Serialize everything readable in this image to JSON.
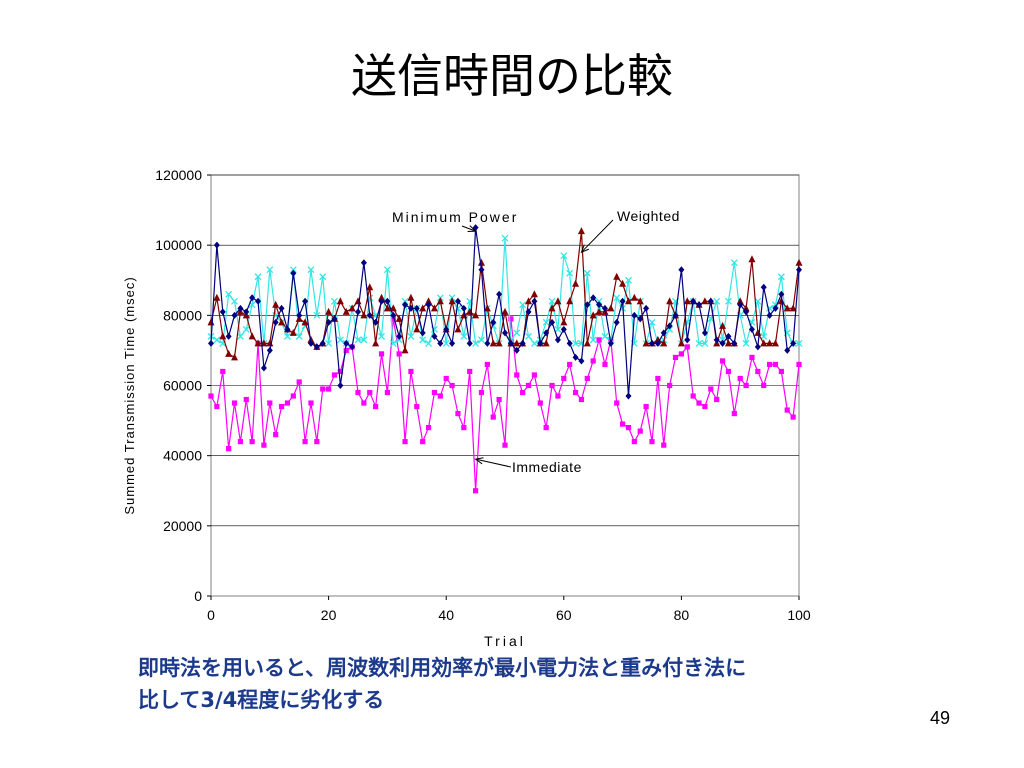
{
  "slide": {
    "title": "送信時間の比較",
    "caption_line1": "即時法を用いると、周波数利用効率が最小電力法と重み付き法に",
    "caption_line2": "比して3/4程度に劣化する",
    "page_number": "49"
  },
  "colors": {
    "minimum_power": "#000080",
    "weighted": "#800000",
    "immediate": "#ff00ff",
    "cyan_series": "#33e6e6"
  },
  "chart_data": {
    "type": "line",
    "xlabel": "Trial",
    "ylabel": "Summed Transmission Time (msec)",
    "xlim": [
      0,
      100
    ],
    "ylim": [
      0,
      120000
    ],
    "x_ticks": [
      "0",
      "20",
      "40",
      "60",
      "80",
      "100"
    ],
    "y_ticks": [
      "0",
      "20000",
      "40000",
      "60000",
      "80000",
      "100000",
      "120000"
    ],
    "grid": true,
    "x": [
      0,
      1,
      2,
      3,
      4,
      5,
      6,
      7,
      8,
      9,
      10,
      11,
      12,
      13,
      14,
      15,
      16,
      17,
      18,
      19,
      20,
      21,
      22,
      23,
      24,
      25,
      26,
      27,
      28,
      29,
      30,
      31,
      32,
      33,
      34,
      35,
      36,
      37,
      38,
      39,
      40,
      41,
      42,
      43,
      44,
      45,
      46,
      47,
      48,
      49,
      50,
      51,
      52,
      53,
      54,
      55,
      56,
      57,
      58,
      59,
      60,
      61,
      62,
      63,
      64,
      65,
      66,
      67,
      68,
      69,
      70,
      71,
      72,
      73,
      74,
      75,
      76,
      77,
      78,
      79,
      80,
      81,
      82,
      83,
      84,
      85,
      86,
      87,
      88,
      89,
      90,
      91,
      92,
      93,
      94,
      95,
      96,
      97,
      98,
      99,
      100
    ],
    "series": [
      {
        "key": "minimum_power",
        "marker": "diamond",
        "values": [
          72000,
          100000,
          81000,
          74000,
          80000,
          82000,
          81000,
          85000,
          84000,
          65000,
          70000,
          78000,
          82000,
          76000,
          92000,
          80000,
          84000,
          72000,
          71000,
          72000,
          78000,
          79000,
          60000,
          72000,
          71000,
          81000,
          95000,
          80000,
          78000,
          84000,
          84000,
          80000,
          74000,
          83000,
          82000,
          82000,
          75000,
          83000,
          74000,
          72000,
          76000,
          72000,
          84000,
          82000,
          72000,
          105000,
          93000,
          72000,
          78000,
          86000,
          75000,
          72000,
          70000,
          72000,
          81000,
          84000,
          72000,
          75000,
          78000,
          73000,
          76000,
          72000,
          68000,
          67000,
          83000,
          85000,
          83000,
          82000,
          72000,
          78000,
          84000,
          57000,
          80000,
          79000,
          82000,
          72000,
          72000,
          75000,
          77000,
          80000,
          93000,
          73000,
          84000,
          83000,
          75000,
          84000,
          73000,
          72000,
          74000,
          72000,
          83000,
          81000,
          76000,
          71000,
          88000,
          80000,
          82000,
          86000,
          70000,
          72000,
          93000
        ]
      },
      {
        "key": "weighted",
        "marker": "triangle",
        "values": [
          78000,
          85000,
          74000,
          69000,
          68000,
          81000,
          80000,
          74000,
          72000,
          72000,
          72000,
          83000,
          78000,
          76000,
          75000,
          79000,
          78000,
          73000,
          71000,
          72000,
          81000,
          79000,
          84000,
          81000,
          82000,
          84000,
          80000,
          88000,
          72000,
          85000,
          82000,
          82000,
          79000,
          70000,
          85000,
          76000,
          82000,
          84000,
          82000,
          84000,
          76000,
          84000,
          76000,
          80000,
          81000,
          80000,
          95000,
          82000,
          72000,
          72000,
          81000,
          72000,
          72000,
          72000,
          84000,
          86000,
          72000,
          72000,
          82000,
          84000,
          78000,
          84000,
          89000,
          104000,
          72000,
          80000,
          81000,
          81000,
          82000,
          91000,
          89000,
          84000,
          85000,
          84000,
          72000,
          72000,
          73000,
          72000,
          84000,
          80000,
          72000,
          84000,
          84000,
          83000,
          84000,
          84000,
          72000,
          77000,
          72000,
          72000,
          84000,
          82000,
          96000,
          75000,
          72000,
          72000,
          72000,
          84000,
          82000,
          82000,
          95000
        ]
      },
      {
        "key": "immediate",
        "marker": "square",
        "values": [
          57000,
          54000,
          64000,
          42000,
          55000,
          44000,
          56000,
          44000,
          72000,
          43000,
          55000,
          46000,
          54000,
          55000,
          57000,
          61000,
          44000,
          55000,
          44000,
          59000,
          59000,
          63000,
          64000,
          70000,
          71000,
          58000,
          55000,
          58000,
          54000,
          69000,
          58000,
          79000,
          69000,
          44000,
          64000,
          54000,
          44000,
          48000,
          58000,
          57000,
          62000,
          60000,
          52000,
          48000,
          64000,
          30000,
          58000,
          66000,
          51000,
          56000,
          43000,
          79000,
          63000,
          58000,
          60000,
          63000,
          55000,
          48000,
          60000,
          57000,
          62000,
          66000,
          58000,
          56000,
          62000,
          67000,
          73000,
          66000,
          73000,
          55000,
          49000,
          48000,
          44000,
          47000,
          54000,
          44000,
          62000,
          43000,
          60000,
          68000,
          69000,
          71000,
          57000,
          55000,
          54000,
          59000,
          56000,
          67000,
          64000,
          52000,
          62000,
          60000,
          68000,
          64000,
          60000,
          66000,
          66000,
          64000,
          53000,
          51000,
          66000
        ]
      },
      {
        "key": "cyan_series",
        "marker": "x",
        "values": [
          74000,
          73000,
          72000,
          86000,
          84000,
          74000,
          76000,
          83000,
          91000,
          72000,
          93000,
          80000,
          78000,
          74000,
          93000,
          74000,
          77000,
          93000,
          80000,
          91000,
          72000,
          84000,
          73000,
          72000,
          82000,
          73000,
          73000,
          85000,
          80000,
          74000,
          93000,
          72000,
          73000,
          84000,
          74000,
          82000,
          73000,
          72000,
          76000,
          85000,
          72000,
          85000,
          82000,
          74000,
          84000,
          72000,
          73000,
          82000,
          77000,
          72000,
          102000,
          73000,
          75000,
          83000,
          74000,
          72000,
          73000,
          78000,
          84000,
          76000,
          97000,
          92000,
          72000,
          72000,
          92000,
          73000,
          84000,
          74000,
          73000,
          85000,
          82000,
          90000,
          72000,
          84000,
          72000,
          78000,
          72000,
          73000,
          76000,
          84000,
          72000,
          78000,
          84000,
          72000,
          72000,
          79000,
          84000,
          73000,
          84000,
          95000,
          80000,
          72000,
          78000,
          84000,
          74000,
          82000,
          83000,
          91000,
          75000,
          72000,
          72000
        ]
      }
    ],
    "annotations": [
      {
        "text": "Minimum Power",
        "series": "minimum_power",
        "target_x": 45,
        "target_y": 104000
      },
      {
        "text": "Weighted",
        "series": "weighted",
        "target_x": 63,
        "target_y": 98000
      },
      {
        "text": "Immediate",
        "series": "immediate",
        "target_x": 45,
        "target_y": 39000
      }
    ]
  }
}
